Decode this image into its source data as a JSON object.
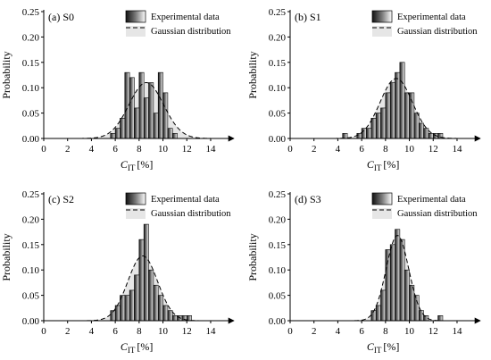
{
  "figure": {
    "background": "#ffffff",
    "x_axis_symbol": "C",
    "x_axis_subscript": "IT",
    "x_axis_unit": "[%]",
    "y_axis_label": "Probability",
    "legend": {
      "experimental_label": "Experimental data",
      "gaussian_label": "Gaussian distribution"
    }
  },
  "chart_data": [
    {
      "type": "bar",
      "panel_label": "(a) S0",
      "xlabel": "C_IT [%]",
      "ylabel": "Probability",
      "xlim": [
        0,
        15.5
      ],
      "ylim": [
        0,
        0.25
      ],
      "x_ticks": [
        0,
        2,
        4,
        6,
        8,
        10,
        12,
        14
      ],
      "y_ticks": [
        0.0,
        0.05,
        0.1,
        0.15,
        0.2,
        0.25
      ],
      "legend_placement": "top-right",
      "series": [
        {
          "name": "Experimental data",
          "kind": "histogram",
          "bin_width": 0.4,
          "x": [
            5.6,
            6.0,
            6.4,
            6.8,
            7.2,
            7.6,
            8.0,
            8.4,
            8.8,
            9.2,
            9.6,
            10.0,
            10.4,
            10.8
          ],
          "values": [
            0.01,
            0.02,
            0.04,
            0.13,
            0.12,
            0.06,
            0.13,
            0.08,
            0.11,
            0.05,
            0.13,
            0.09,
            0.02,
            0.01
          ]
        },
        {
          "name": "Gaussian distribution",
          "kind": "curve",
          "mean": 8.6,
          "std": 1.45,
          "bin_width": 0.4
        }
      ]
    },
    {
      "type": "bar",
      "panel_label": "(b) S1",
      "xlabel": "C_IT [%]",
      "ylabel": "Probability",
      "xlim": [
        0,
        15.5
      ],
      "ylim": [
        0,
        0.25
      ],
      "x_ticks": [
        0,
        2,
        4,
        6,
        8,
        10,
        12,
        14
      ],
      "y_ticks": [
        0.0,
        0.05,
        0.1,
        0.15,
        0.2,
        0.25
      ],
      "legend_placement": "top-right",
      "series": [
        {
          "name": "Experimental data",
          "kind": "histogram",
          "bin_width": 0.4,
          "x": [
            4.4,
            5.6,
            6.0,
            6.4,
            6.8,
            7.2,
            7.6,
            8.0,
            8.4,
            8.8,
            9.2,
            9.6,
            10.0,
            10.4,
            10.8,
            11.2,
            11.6,
            12.0,
            12.4
          ],
          "values": [
            0.01,
            0.01,
            0.02,
            0.02,
            0.04,
            0.05,
            0.06,
            0.09,
            0.11,
            0.13,
            0.15,
            0.09,
            0.09,
            0.05,
            0.03,
            0.02,
            0.01,
            0.01,
            0.01
          ]
        },
        {
          "name": "Gaussian distribution",
          "kind": "curve",
          "mean": 8.9,
          "std": 1.35,
          "bin_width": 0.4
        }
      ]
    },
    {
      "type": "bar",
      "panel_label": "(c) S2",
      "xlabel": "C_IT [%]",
      "ylabel": "Probability",
      "xlim": [
        0,
        15.5
      ],
      "ylim": [
        0,
        0.25
      ],
      "x_ticks": [
        0,
        2,
        4,
        6,
        8,
        10,
        12,
        14
      ],
      "y_ticks": [
        0.0,
        0.05,
        0.1,
        0.15,
        0.2,
        0.25
      ],
      "legend_placement": "top-right",
      "series": [
        {
          "name": "Experimental data",
          "kind": "histogram",
          "bin_width": 0.4,
          "x": [
            5.6,
            6.0,
            6.4,
            6.8,
            7.2,
            7.6,
            8.0,
            8.4,
            8.8,
            9.2,
            9.6,
            10.0,
            10.4,
            10.8,
            11.2,
            11.6,
            12.0
          ],
          "values": [
            0.02,
            0.03,
            0.05,
            0.05,
            0.06,
            0.09,
            0.16,
            0.19,
            0.1,
            0.07,
            0.05,
            0.03,
            0.02,
            0.01,
            0.01,
            0.01,
            0.01
          ]
        },
        {
          "name": "Gaussian distribution",
          "kind": "curve",
          "mean": 8.3,
          "std": 1.25,
          "bin_width": 0.4
        }
      ]
    },
    {
      "type": "bar",
      "panel_label": "(d) S3",
      "xlabel": "C_IT [%]",
      "ylabel": "Probability",
      "xlim": [
        0,
        15.5
      ],
      "ylim": [
        0,
        0.25
      ],
      "x_ticks": [
        0,
        2,
        4,
        6,
        8,
        10,
        12,
        14
      ],
      "y_ticks": [
        0.0,
        0.05,
        0.1,
        0.15,
        0.2,
        0.25
      ],
      "legend_placement": "top-right",
      "series": [
        {
          "name": "Experimental data",
          "kind": "histogram",
          "bin_width": 0.4,
          "x": [
            6.8,
            7.2,
            7.6,
            8.0,
            8.4,
            8.8,
            9.2,
            9.6,
            10.0,
            10.4,
            10.8,
            11.2,
            12.4
          ],
          "values": [
            0.02,
            0.03,
            0.06,
            0.14,
            0.15,
            0.18,
            0.16,
            0.1,
            0.07,
            0.05,
            0.02,
            0.01,
            0.01
          ]
        },
        {
          "name": "Gaussian distribution",
          "kind": "curve",
          "mean": 9.0,
          "std": 0.95,
          "bin_width": 0.4
        }
      ]
    }
  ]
}
